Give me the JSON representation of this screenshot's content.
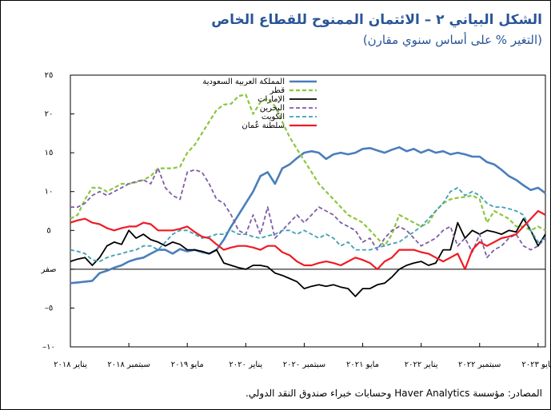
{
  "chart_data": {
    "type": "line",
    "title": "الشكل البياني ٢ – الائتمان الممنوح للقطاع الخاص",
    "subtitle": "(التغير % على أساس سنوي مقارن)",
    "source": "المصادر: مؤسسة Haver Analytics وحسابات خبراء صندوق النقد الدولي.",
    "x": [
      "2018-01",
      "2018-02",
      "2018-03",
      "2018-04",
      "2018-05",
      "2018-06",
      "2018-07",
      "2018-08",
      "2018-09",
      "2018-10",
      "2018-11",
      "2018-12",
      "2019-01",
      "2019-02",
      "2019-03",
      "2019-04",
      "2019-05",
      "2019-06",
      "2019-07",
      "2019-08",
      "2019-09",
      "2019-10",
      "2019-11",
      "2019-12",
      "2020-01",
      "2020-02",
      "2020-03",
      "2020-04",
      "2020-05",
      "2020-06",
      "2020-07",
      "2020-08",
      "2020-09",
      "2020-10",
      "2020-11",
      "2020-12",
      "2021-01",
      "2021-02",
      "2021-03",
      "2021-04",
      "2021-05",
      "2021-06",
      "2021-07",
      "2021-08",
      "2021-09",
      "2021-10",
      "2021-11",
      "2021-12",
      "2022-01",
      "2022-02",
      "2022-03",
      "2022-04",
      "2022-05",
      "2022-06",
      "2022-07",
      "2022-08",
      "2022-09",
      "2022-10",
      "2022-11",
      "2022-12",
      "2023-01",
      "2023-02",
      "2023-03",
      "2023-04",
      "2023-05",
      "2023-06"
    ],
    "series": [
      {
        "name": "المملكة العربية السعودية",
        "color": "#4a7ebb",
        "dashed": false,
        "width": 2.6,
        "values": [
          -1.8,
          -1.7,
          -1.6,
          -1.5,
          -0.5,
          -0.2,
          0.2,
          0.5,
          1.0,
          1.3,
          1.5,
          2,
          2.5,
          2.5,
          2,
          2.6,
          2.3,
          2.5,
          2.2,
          2.0,
          2.5,
          3.8,
          5.5,
          7,
          8.5,
          10,
          12,
          12.5,
          11,
          13,
          13.5,
          14.3,
          15,
          15.2,
          15,
          14.2,
          14.8,
          15,
          14.8,
          15.0,
          15.5,
          15.6,
          15.3,
          15.0,
          15.4,
          15.7,
          15.2,
          15.5,
          15.0,
          15.4,
          15.0,
          15.2,
          14.8,
          15.0,
          14.8,
          14.5,
          14.5,
          13.8,
          13.5,
          12.8,
          12.0,
          11.5,
          10.8,
          10.2,
          10.5,
          9.8
        ]
      },
      {
        "name": "قطر",
        "color": "#8cc63f",
        "dashed": true,
        "width": 2.2,
        "values": [
          6.5,
          7,
          9,
          10.5,
          10.5,
          10,
          10.5,
          11,
          11,
          11.2,
          11.5,
          12,
          13,
          13,
          13,
          13.2,
          15,
          16,
          17.5,
          19,
          20.5,
          21.2,
          21.3,
          22.3,
          22.5,
          20,
          21.5,
          22,
          21,
          19,
          17,
          15.5,
          14,
          12.5,
          11,
          10,
          9,
          8,
          7,
          6.5,
          6,
          5,
          4,
          3,
          4.5,
          7,
          6.5,
          6,
          5.5,
          6,
          7.5,
          8.5,
          9,
          9.2,
          9.3,
          9.5,
          9,
          6,
          7.5,
          7,
          6.5,
          5.5,
          5.5,
          5,
          5.5,
          5
        ]
      },
      {
        "name": "الإمارات",
        "color": "#000000",
        "dashed": false,
        "width": 1.8,
        "values": [
          1,
          1.3,
          1.5,
          0.5,
          1.5,
          3,
          3.5,
          3.2,
          5,
          4,
          4.5,
          3.8,
          3.5,
          3,
          3.5,
          3.2,
          2.5,
          2.5,
          2.3,
          2.0,
          2.5,
          0.8,
          0.5,
          0.2,
          0,
          0.5,
          0.5,
          0.3,
          -0.5,
          -0.8,
          -1.2,
          -1.6,
          -2.5,
          -2.2,
          -2.0,
          -2.2,
          -2.0,
          -2.3,
          -2.5,
          -3.5,
          -2.5,
          -2.5,
          -2.0,
          -1.8,
          -1.0,
          0,
          0.5,
          0.8,
          1.0,
          0.5,
          0.8,
          2.5,
          2.5,
          6,
          4,
          5,
          4.5,
          5,
          4.8,
          4.5,
          5,
          4.8,
          6.5,
          5,
          3,
          4.5
        ]
      },
      {
        "name": "البحرين",
        "color": "#7f5ca8",
        "dashed": true,
        "width": 1.8,
        "values": [
          8,
          8,
          8.5,
          9.5,
          10,
          9.5,
          10,
          10.5,
          11,
          11.3,
          11.5,
          11,
          13,
          10.5,
          9.5,
          9,
          12.5,
          12.8,
          12.5,
          11,
          9,
          8.5,
          7,
          5,
          4.5,
          7,
          4.5,
          8,
          4,
          5,
          6,
          7,
          6,
          7,
          8,
          7.5,
          7,
          6,
          5.5,
          5,
          3.5,
          4,
          2.5,
          4,
          5,
          5.5,
          5,
          4,
          3,
          3.5,
          4,
          5,
          5.5,
          3,
          4,
          2.2,
          4.5,
          1.5,
          2.5,
          3,
          4,
          4.5,
          3,
          2.5,
          3,
          4
        ]
      },
      {
        "name": "الكويت",
        "color": "#3fa0b5",
        "dashed": true,
        "width": 1.8,
        "values": [
          2.5,
          2.3,
          2,
          1.2,
          1,
          1.5,
          1.8,
          2,
          2.3,
          2.5,
          3,
          3,
          2.5,
          3.5,
          4.5,
          5,
          5,
          4.5,
          4,
          4.2,
          4.5,
          4.5,
          5,
          4.5,
          4.5,
          4.2,
          4,
          4.3,
          4.5,
          5,
          5,
          4.5,
          5,
          4.5,
          4,
          4.5,
          4,
          3,
          3.5,
          2.5,
          2.5,
          2.5,
          2.8,
          3,
          3.3,
          3.5,
          4.2,
          4.8,
          5.5,
          6.5,
          7.5,
          8.5,
          10,
          10.5,
          9.5,
          10,
          9.5,
          8.5,
          8,
          8,
          7.8,
          7.5,
          7,
          5,
          3.5,
          4
        ]
      },
      {
        "name": "سلطنة عُمان",
        "color": "#ee1c25",
        "dashed": false,
        "width": 2.2,
        "values": [
          6,
          6.3,
          6.5,
          6,
          5.8,
          5.3,
          5,
          5.3,
          5.5,
          5.5,
          6,
          5.8,
          5,
          5,
          5,
          5.2,
          5.5,
          4.8,
          4.2,
          4,
          3.2,
          2.5,
          2.8,
          3,
          3,
          2.8,
          2.5,
          3,
          3,
          2.2,
          1.8,
          1.0,
          0.5,
          0.5,
          0.8,
          1,
          0.8,
          0.5,
          1,
          1.5,
          1.2,
          0.8,
          0,
          1,
          1.5,
          2.5,
          2.5,
          2.5,
          2.2,
          2,
          1.5,
          1,
          1.5,
          2,
          0,
          2.5,
          3.5,
          3,
          3.5,
          4,
          4.2,
          4.5,
          5.5,
          6.5,
          7.5,
          7
        ]
      }
    ],
    "xlim": [
      "2018-01",
      "2023-06"
    ],
    "xticks": [
      {
        "value": "2018-01",
        "label": "يناير ٢٠١٨"
      },
      {
        "value": "2018-09",
        "label": "سبتمبر ٢٠١٨"
      },
      {
        "value": "2019-05",
        "label": "مايو ٢٠١٩"
      },
      {
        "value": "2020-01",
        "label": "يناير ٢٠٢٠"
      },
      {
        "value": "2020-09",
        "label": "سبتمبر ٢٠٢٠"
      },
      {
        "value": "2021-05",
        "label": "مايو ٢٠٢١"
      },
      {
        "value": "2022-01",
        "label": "يناير ٢٠٢٢"
      },
      {
        "value": "2022-09",
        "label": "سبتمبر ٢٠٢٢"
      },
      {
        "value": "2023-05",
        "label": "مايو ٢٠٢٣"
      }
    ],
    "ylim": [
      -10,
      25
    ],
    "yticks": [
      {
        "value": -10,
        "label": "١٠–"
      },
      {
        "value": -5,
        "label": "٥–"
      },
      {
        "value": 0,
        "label": "صفر"
      },
      {
        "value": 5,
        "label": "٥"
      },
      {
        "value": 10,
        "label": "١٠"
      },
      {
        "value": 15,
        "label": "١٥"
      },
      {
        "value": 20,
        "label": "٢٠"
      },
      {
        "value": 25,
        "label": "٢٥"
      }
    ],
    "grid": false,
    "legend": "top-left"
  }
}
